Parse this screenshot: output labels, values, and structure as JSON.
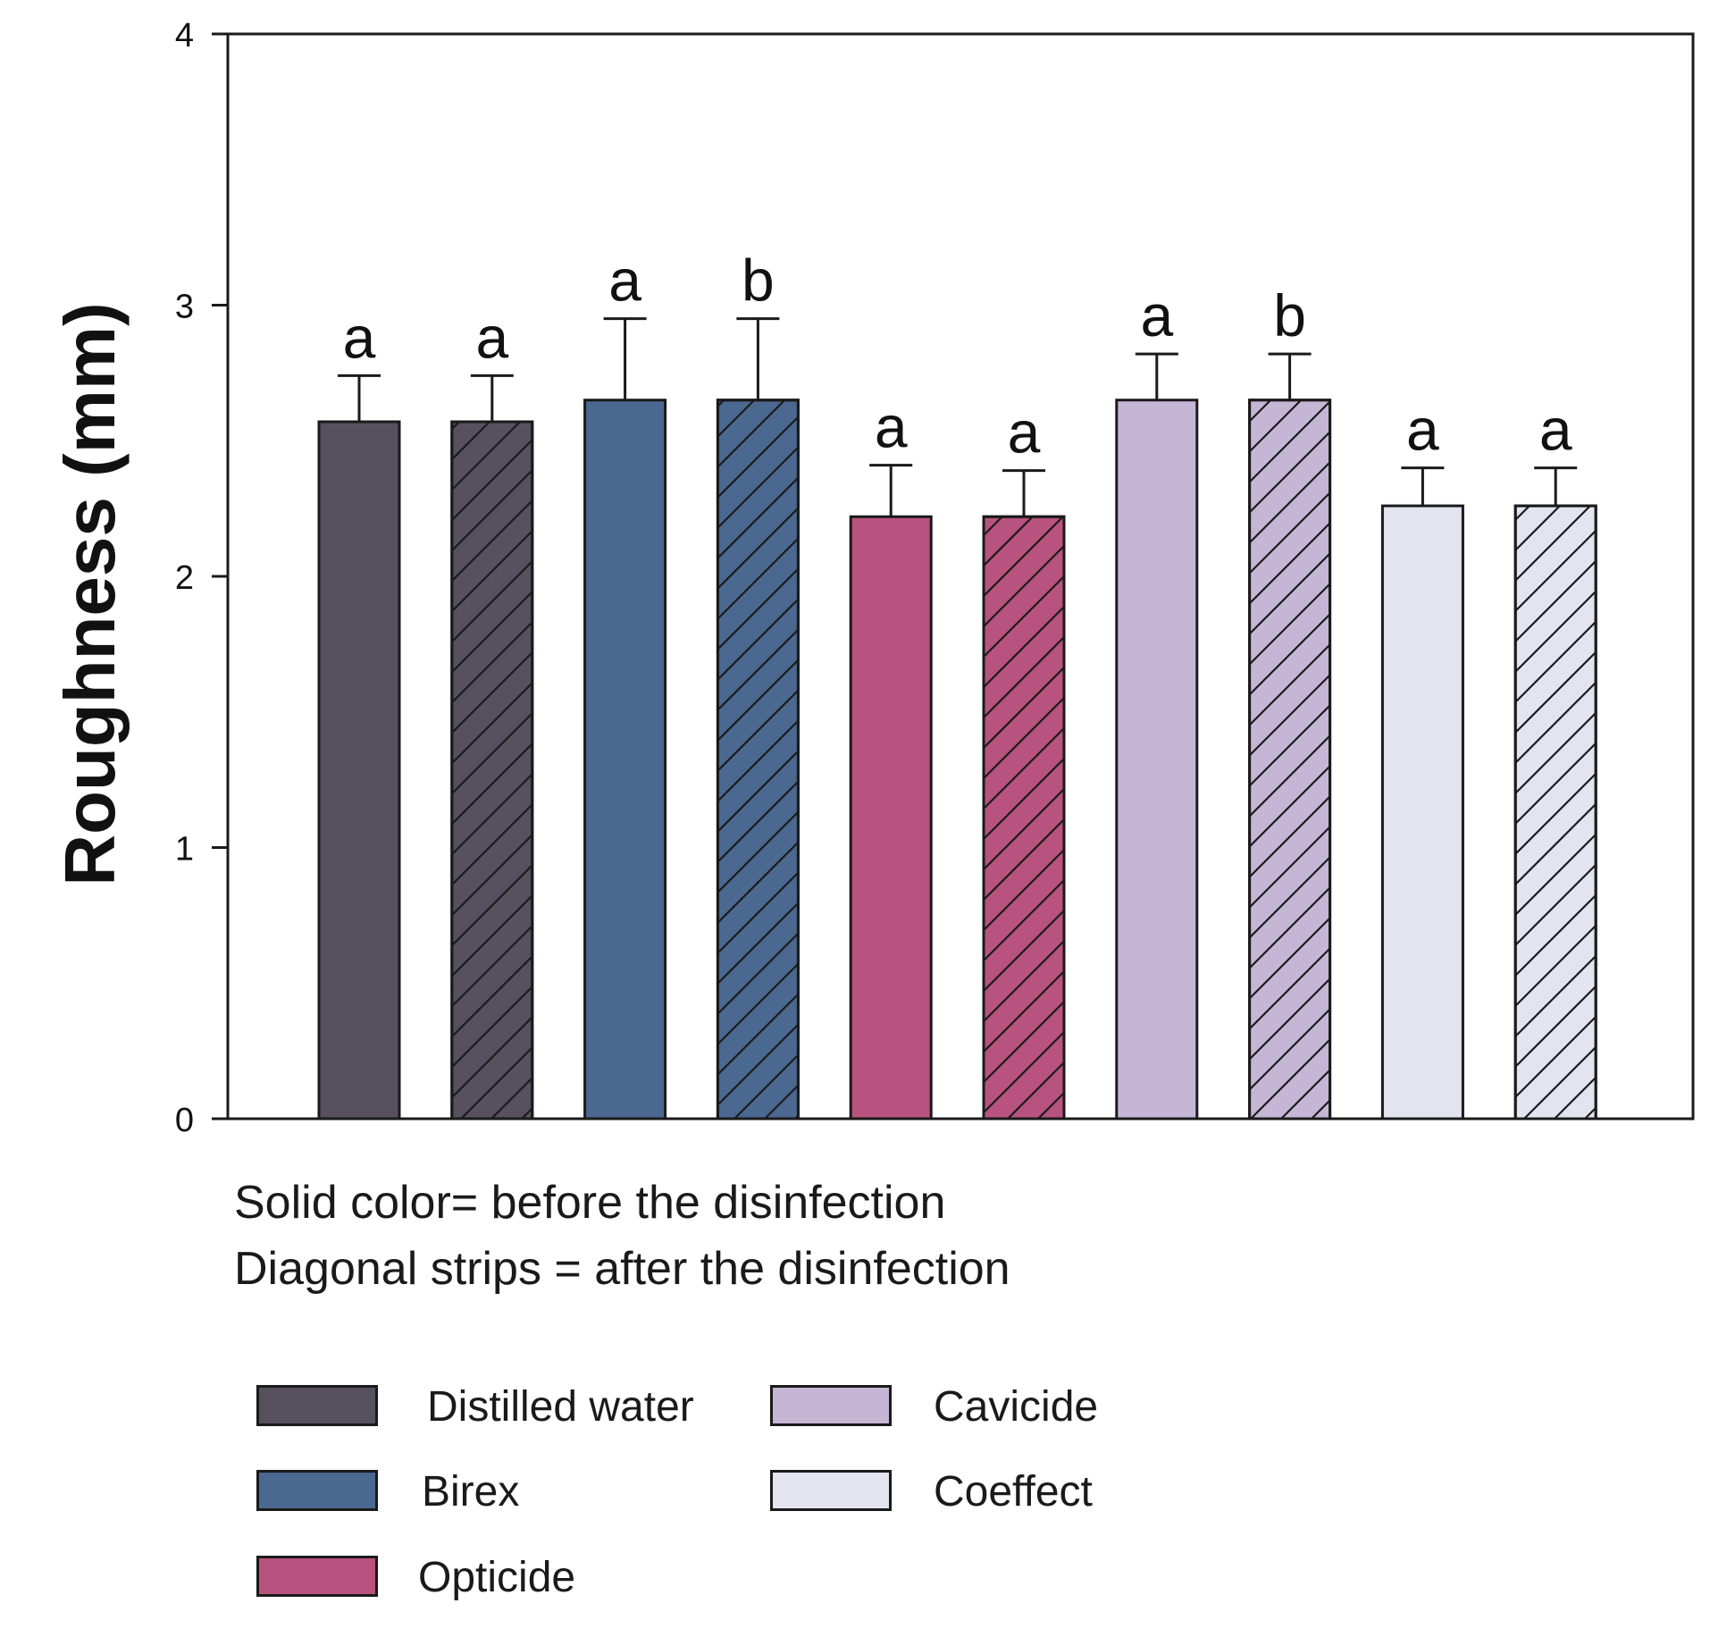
{
  "chart_data": {
    "type": "bar",
    "ylabel": "Roughness (mm)",
    "ylim": [
      0,
      4
    ],
    "yticks": [
      "0",
      "1",
      "2",
      "3",
      "4"
    ],
    "grid": false,
    "bars": [
      {
        "group": "Distilled water",
        "state": "before",
        "value": 2.57,
        "error": 0.17,
        "label": "a"
      },
      {
        "group": "Distilled water",
        "state": "after",
        "value": 2.57,
        "error": 0.17,
        "label": "a"
      },
      {
        "group": "Birex",
        "state": "before",
        "value": 2.65,
        "error": 0.3,
        "label": "a"
      },
      {
        "group": "Birex",
        "state": "after",
        "value": 2.65,
        "error": 0.3,
        "label": "b"
      },
      {
        "group": "Opticide",
        "state": "before",
        "value": 2.22,
        "error": 0.19,
        "label": "a"
      },
      {
        "group": "Opticide",
        "state": "after",
        "value": 2.22,
        "error": 0.17,
        "label": "a"
      },
      {
        "group": "Cavicide",
        "state": "before",
        "value": 2.65,
        "error": 0.17,
        "label": "a"
      },
      {
        "group": "Cavicide",
        "state": "after",
        "value": 2.65,
        "error": 0.17,
        "label": "b"
      },
      {
        "group": "Coeffect",
        "state": "before",
        "value": 2.26,
        "error": 0.14,
        "label": "a"
      },
      {
        "group": "Coeffect",
        "state": "after",
        "value": 2.26,
        "error": 0.14,
        "label": "a"
      }
    ],
    "notes": [
      "Solid color= before the disinfection",
      "Diagonal strips = after the disinfection"
    ],
    "legend": [
      {
        "name": "Distilled water",
        "color": "#57505f"
      },
      {
        "name": "Birex",
        "color": "#4a6890"
      },
      {
        "name": "Opticide",
        "color": "#b8527e"
      },
      {
        "name": "Cavicide",
        "color": "#c6b6d6"
      },
      {
        "name": "Coeffect",
        "color": "#e3e4f0"
      }
    ]
  }
}
